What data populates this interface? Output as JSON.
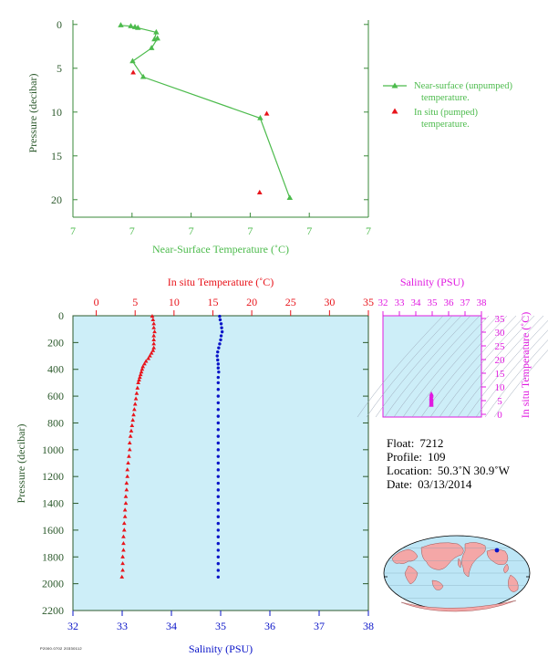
{
  "colors": {
    "green": "#4cbb4c",
    "red": "#e8141b",
    "blue": "#0a14c8",
    "magenta": "#e01ae0",
    "axis_green": "#3a8a3a",
    "panel_fill": "#cdeef8",
    "ylabel_color": "#2d5a2d"
  },
  "chart_data": [
    {
      "id": "near_surface",
      "type": "line",
      "xlabel": "Near-Surface Temperature (˚C)",
      "ylabel": "Pressure (decibar)",
      "xticklabels": [
        "7",
        "7",
        "7",
        "7",
        "7",
        "7"
      ],
      "xlim": [
        6.95,
        7.45
      ],
      "ylim": [
        22,
        -0.5
      ],
      "yticks": [
        "0",
        "5",
        "10",
        "15",
        "20"
      ],
      "grid": false,
      "legend_position": "right",
      "series": [
        {
          "name": "Near-surface (unpumped) temperature.",
          "marker": "triangle",
          "x": [
            7.031,
            7.048,
            7.055,
            7.06,
            7.091,
            7.088,
            7.093,
            7.083,
            7.051,
            7.069,
            7.267,
            7.317
          ],
          "y": [
            0.1,
            0.2,
            0.3,
            0.4,
            0.9,
            1.7,
            1.6,
            2.7,
            4.2,
            6.0,
            10.7,
            19.8
          ]
        },
        {
          "name": "In situ (pumped) temperature.",
          "marker": "triangle",
          "x": [
            7.052,
            7.278,
            7.266
          ],
          "y": [
            5.5,
            10.2,
            19.2
          ]
        }
      ]
    },
    {
      "id": "profile",
      "type": "scatter",
      "ylabel": "Pressure (decibar)",
      "ylim": [
        2200,
        0
      ],
      "yticks": [
        "0",
        "200",
        "400",
        "600",
        "800",
        "1000",
        "1200",
        "1400",
        "1600",
        "1800",
        "2000",
        "2200"
      ],
      "top_axis": {
        "label": "In situ Temperature (˚C)",
        "ticks": [
          "0",
          "5",
          "10",
          "15",
          "20",
          "25",
          "30",
          "35"
        ],
        "lim": [
          -3,
          35
        ]
      },
      "bottom_axis": {
        "label": "Salinity (PSU)",
        "ticks": [
          "32",
          "33",
          "34",
          "35",
          "36",
          "37",
          "38"
        ],
        "lim": [
          32,
          38
        ]
      },
      "series": [
        {
          "name": "In situ Temperature",
          "marker": "triangle",
          "points": [
            [
              7.2,
              4
            ],
            [
              7.3,
              30
            ],
            [
              7.4,
              60
            ],
            [
              7.4,
              90
            ],
            [
              7.5,
              120
            ],
            [
              7.4,
              150
            ],
            [
              7.4,
              180
            ],
            [
              7.4,
              210
            ],
            [
              7.4,
              240
            ],
            [
              7.3,
              260
            ],
            [
              7.1,
              280
            ],
            [
              6.9,
              300
            ],
            [
              6.7,
              320
            ],
            [
              6.4,
              340
            ],
            [
              6.2,
              360
            ],
            [
              6.0,
              380
            ],
            [
              5.9,
              400
            ],
            [
              5.8,
              420
            ],
            [
              5.7,
              440
            ],
            [
              5.6,
              460
            ],
            [
              5.5,
              480
            ],
            [
              5.4,
              500
            ],
            [
              5.3,
              540
            ],
            [
              5.2,
              580
            ],
            [
              5.1,
              620
            ],
            [
              5.0,
              660
            ],
            [
              4.9,
              700
            ],
            [
              4.8,
              740
            ],
            [
              4.7,
              780
            ],
            [
              4.6,
              820
            ],
            [
              4.5,
              860
            ],
            [
              4.4,
              900
            ],
            [
              4.3,
              950
            ],
            [
              4.3,
              1000
            ],
            [
              4.2,
              1050
            ],
            [
              4.1,
              1100
            ],
            [
              4.0,
              1150
            ],
            [
              4.0,
              1200
            ],
            [
              3.9,
              1250
            ],
            [
              3.9,
              1300
            ],
            [
              3.8,
              1350
            ],
            [
              3.8,
              1400
            ],
            [
              3.7,
              1450
            ],
            [
              3.7,
              1500
            ],
            [
              3.6,
              1550
            ],
            [
              3.6,
              1600
            ],
            [
              3.5,
              1650
            ],
            [
              3.5,
              1700
            ],
            [
              3.5,
              1750
            ],
            [
              3.4,
              1800
            ],
            [
              3.4,
              1850
            ],
            [
              3.4,
              1900
            ],
            [
              3.3,
              1950
            ]
          ]
        },
        {
          "name": "Salinity",
          "marker": "dot",
          "points": [
            [
              34.98,
              4
            ],
            [
              34.99,
              30
            ],
            [
              35.01,
              60
            ],
            [
              35.02,
              90
            ],
            [
              35.03,
              120
            ],
            [
              35.01,
              150
            ],
            [
              35.0,
              180
            ],
            [
              34.98,
              210
            ],
            [
              34.96,
              240
            ],
            [
              34.94,
              270
            ],
            [
              34.93,
              300
            ],
            [
              34.94,
              330
            ],
            [
              34.95,
              360
            ],
            [
              34.95,
              390
            ],
            [
              34.96,
              420
            ],
            [
              34.95,
              460
            ],
            [
              34.95,
              500
            ],
            [
              34.95,
              550
            ],
            [
              34.95,
              600
            ],
            [
              34.95,
              650
            ],
            [
              34.95,
              700
            ],
            [
              34.95,
              750
            ],
            [
              34.95,
              800
            ],
            [
              34.95,
              850
            ],
            [
              34.95,
              900
            ],
            [
              34.95,
              950
            ],
            [
              34.95,
              1000
            ],
            [
              34.95,
              1050
            ],
            [
              34.95,
              1100
            ],
            [
              34.95,
              1150
            ],
            [
              34.95,
              1200
            ],
            [
              34.95,
              1250
            ],
            [
              34.95,
              1300
            ],
            [
              34.95,
              1350
            ],
            [
              34.95,
              1400
            ],
            [
              34.95,
              1450
            ],
            [
              34.95,
              1500
            ],
            [
              34.95,
              1550
            ],
            [
              34.95,
              1600
            ],
            [
              34.95,
              1650
            ],
            [
              34.95,
              1700
            ],
            [
              34.95,
              1750
            ],
            [
              34.95,
              1800
            ],
            [
              34.95,
              1850
            ],
            [
              34.95,
              1900
            ],
            [
              34.95,
              1950
            ]
          ]
        }
      ]
    },
    {
      "id": "ts_diagram",
      "type": "scatter",
      "xlabel": "Salinity (PSU)",
      "ylabel": "In situ Temperature (˚C)",
      "xlim": [
        32,
        38
      ],
      "ylim": [
        -1,
        36
      ],
      "xticks": [
        "32",
        "33",
        "34",
        "35",
        "36",
        "37",
        "38"
      ],
      "yticks": [
        "0",
        "5",
        "10",
        "15",
        "20",
        "25",
        "30",
        "35"
      ],
      "series": [
        {
          "name": "T-S",
          "marker": "triangle",
          "points": [
            [
              34.95,
              7.4
            ],
            [
              34.96,
              7.0
            ],
            [
              34.95,
              6.5
            ],
            [
              34.94,
              6.0
            ],
            [
              34.95,
              5.6
            ],
            [
              34.95,
              5.2
            ],
            [
              34.95,
              4.8
            ],
            [
              34.95,
              4.4
            ],
            [
              34.95,
              4.0
            ],
            [
              34.95,
              3.6
            ],
            [
              34.95,
              3.3
            ]
          ]
        }
      ]
    }
  ],
  "float_info": {
    "float_label": "Float:",
    "float_value": "7212",
    "profile_label": "Profile:",
    "profile_value": "109",
    "location_label": "Location:",
    "location_value": "50.3˚N  30.9˚W",
    "date_label": "Date:",
    "date_value": "03/13/2014"
  },
  "footer_note": "P2000.0702 20330112"
}
